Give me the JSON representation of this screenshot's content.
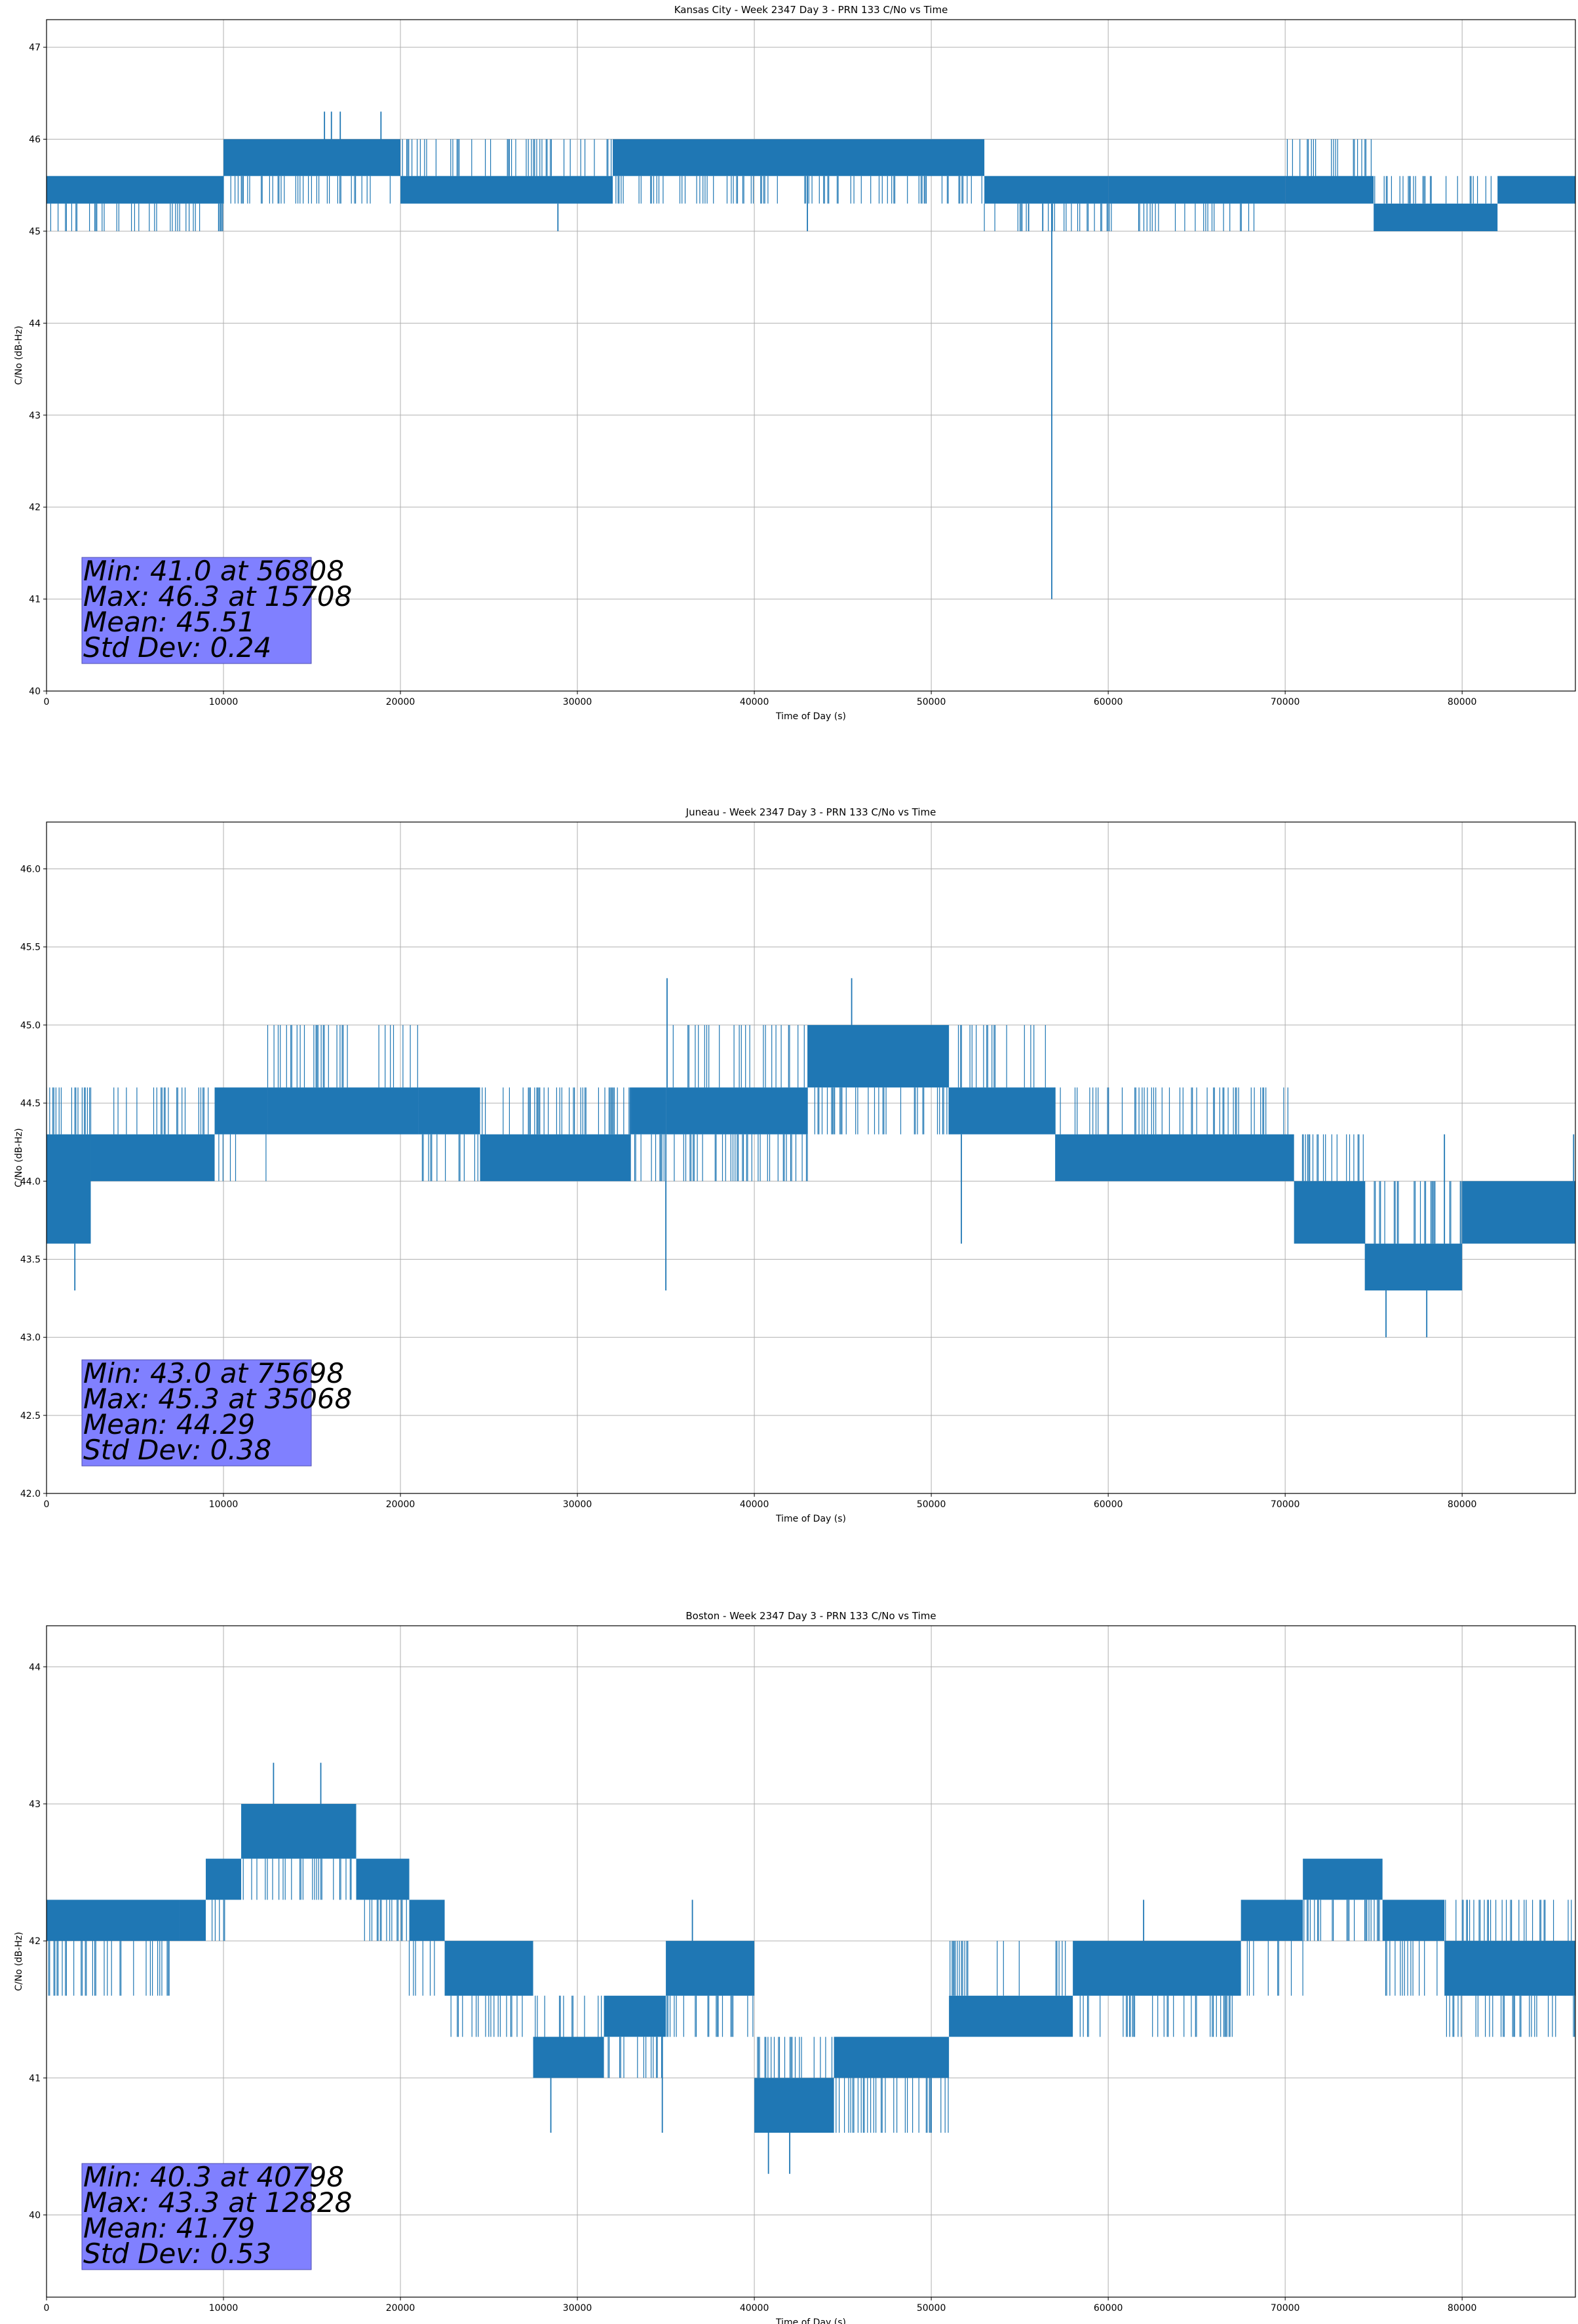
{
  "style": {
    "line_color": "#1f77b4",
    "grid_color": "#b0b0b0",
    "stats_box_color": "#8080ff"
  },
  "chart_data": [
    {
      "type": "line",
      "title": "Kansas City - Week 2347 Day 3 - PRN 133 C/No vs Time",
      "xlabel": "Time of Day (s)",
      "ylabel": "C/No (dB-Hz)",
      "xlim": [
        0,
        86400
      ],
      "ylim": [
        40,
        47.3
      ],
      "grid": true,
      "xticks": [
        0,
        10000,
        20000,
        30000,
        40000,
        50000,
        60000,
        70000,
        80000
      ],
      "yticks": [
        40,
        41,
        42,
        43,
        44,
        45,
        46,
        47
      ],
      "ytick_labels": [
        "40",
        "41",
        "42",
        "43",
        "44",
        "45",
        "46",
        "47"
      ],
      "bands": [
        {
          "x0": 0,
          "x1": 10000,
          "lo": 45.0,
          "hi": 45.6,
          "core_lo": 45.3,
          "core_hi": 45.6
        },
        {
          "x0": 10000,
          "x1": 20000,
          "lo": 45.3,
          "hi": 46.0,
          "core_lo": 45.6,
          "core_hi": 46.0
        },
        {
          "x0": 20000,
          "x1": 32000,
          "lo": 45.3,
          "hi": 46.0,
          "core_lo": 45.3,
          "core_hi": 45.6
        },
        {
          "x0": 32000,
          "x1": 53000,
          "lo": 45.3,
          "hi": 46.0,
          "core_lo": 45.6,
          "core_hi": 46.0
        },
        {
          "x0": 53000,
          "x1": 60000,
          "lo": 45.0,
          "hi": 45.6,
          "core_lo": 45.3,
          "core_hi": 45.6
        },
        {
          "x0": 60000,
          "x1": 70000,
          "lo": 45.0,
          "hi": 45.6,
          "core_lo": 45.3,
          "core_hi": 45.6
        },
        {
          "x0": 70000,
          "x1": 75000,
          "lo": 45.3,
          "hi": 46.0,
          "core_lo": 45.3,
          "core_hi": 45.6
        },
        {
          "x0": 75000,
          "x1": 82000,
          "lo": 45.0,
          "hi": 45.6,
          "core_lo": 45.0,
          "core_hi": 45.3
        },
        {
          "x0": 82000,
          "x1": 86400,
          "lo": 45.3,
          "hi": 45.6,
          "core_lo": 45.3,
          "core_hi": 45.6
        }
      ],
      "spikes": [
        {
          "x": 15708,
          "y": 46.3
        },
        {
          "x": 16100,
          "y": 46.3
        },
        {
          "x": 16600,
          "y": 46.3
        },
        {
          "x": 18900,
          "y": 46.3
        },
        {
          "x": 28900,
          "y": 45.0
        },
        {
          "x": 43000,
          "y": 45.0
        },
        {
          "x": 55500,
          "y": 45.0
        },
        {
          "x": 56300,
          "y": 45.0
        },
        {
          "x": 56808,
          "y": 41.0
        }
      ],
      "stats": [
        "Min: 41.0 at 56808",
        "Max: 46.3 at 15708",
        "Mean: 45.51",
        "Std Dev: 0.24"
      ]
    },
    {
      "type": "line",
      "title": "Juneau - Week 2347 Day 3 - PRN 133 C/No vs Time",
      "xlabel": "Time of Day (s)",
      "ylabel": "C/No (dB-Hz)",
      "xlim": [
        0,
        86400
      ],
      "ylim": [
        42.0,
        46.3
      ],
      "grid": true,
      "xticks": [
        0,
        10000,
        20000,
        30000,
        40000,
        50000,
        60000,
        70000,
        80000
      ],
      "yticks": [
        42.0,
        42.5,
        43.0,
        43.5,
        44.0,
        44.5,
        45.0,
        45.5,
        46.0
      ],
      "ytick_labels": [
        "42.0",
        "42.5",
        "43.0",
        "43.5",
        "44.0",
        "44.5",
        "45.0",
        "45.5",
        "46.0"
      ],
      "bands": [
        {
          "x0": 0,
          "x1": 2500,
          "lo": 43.6,
          "hi": 44.6,
          "core_lo": 43.6,
          "core_hi": 44.3
        },
        {
          "x0": 2500,
          "x1": 9500,
          "lo": 44.0,
          "hi": 44.6,
          "core_lo": 44.0,
          "core_hi": 44.3
        },
        {
          "x0": 9500,
          "x1": 12500,
          "lo": 44.0,
          "hi": 44.6,
          "core_lo": 44.3,
          "core_hi": 44.6
        },
        {
          "x0": 12500,
          "x1": 21000,
          "lo": 44.3,
          "hi": 45.0,
          "core_lo": 44.3,
          "core_hi": 44.6
        },
        {
          "x0": 21000,
          "x1": 24500,
          "lo": 44.0,
          "hi": 44.6,
          "core_lo": 44.3,
          "core_hi": 44.6
        },
        {
          "x0": 24500,
          "x1": 33000,
          "lo": 44.0,
          "hi": 44.6,
          "core_lo": 44.0,
          "core_hi": 44.3
        },
        {
          "x0": 33000,
          "x1": 35000,
          "lo": 44.0,
          "hi": 44.6,
          "core_lo": 44.3,
          "core_hi": 44.6
        },
        {
          "x0": 35000,
          "x1": 43000,
          "lo": 44.0,
          "hi": 45.0,
          "core_lo": 44.3,
          "core_hi": 44.6
        },
        {
          "x0": 43000,
          "x1": 51000,
          "lo": 44.3,
          "hi": 45.0,
          "core_lo": 44.6,
          "core_hi": 45.0
        },
        {
          "x0": 51000,
          "x1": 57000,
          "lo": 44.3,
          "hi": 45.0,
          "core_lo": 44.3,
          "core_hi": 44.6
        },
        {
          "x0": 57000,
          "x1": 70500,
          "lo": 44.0,
          "hi": 44.6,
          "core_lo": 44.0,
          "core_hi": 44.3
        },
        {
          "x0": 70500,
          "x1": 74500,
          "lo": 43.6,
          "hi": 44.3,
          "core_lo": 43.6,
          "core_hi": 44.0
        },
        {
          "x0": 74500,
          "x1": 80000,
          "lo": 43.3,
          "hi": 44.0,
          "core_lo": 43.3,
          "core_hi": 43.6
        },
        {
          "x0": 80000,
          "x1": 86400,
          "lo": 43.6,
          "hi": 44.0,
          "core_lo": 43.6,
          "core_hi": 44.0
        }
      ],
      "spikes": [
        {
          "x": 1600,
          "y": 43.3
        },
        {
          "x": 35068,
          "y": 45.3
        },
        {
          "x": 35000,
          "y": 43.3
        },
        {
          "x": 45500,
          "y": 45.3
        },
        {
          "x": 51700,
          "y": 43.6
        },
        {
          "x": 75698,
          "y": 43.0
        },
        {
          "x": 78000,
          "y": 43.0
        },
        {
          "x": 79000,
          "y": 44.3
        },
        {
          "x": 86300,
          "y": 44.3
        }
      ],
      "stats": [
        "Min: 43.0 at 75698",
        "Max: 45.3 at 35068",
        "Mean: 44.29",
        "Std Dev: 0.38"
      ]
    },
    {
      "type": "line",
      "title": "Boston - Week 2347 Day 3 - PRN 133 C/No vs Time",
      "xlabel": "Time of Day (s)",
      "ylabel": "C/No (dB-Hz)",
      "xlim": [
        0,
        86400
      ],
      "ylim": [
        39.4,
        44.3
      ],
      "grid": true,
      "xticks": [
        0,
        10000,
        20000,
        30000,
        40000,
        50000,
        60000,
        70000,
        80000
      ],
      "yticks": [
        40,
        41,
        42,
        43,
        44
      ],
      "ytick_labels": [
        "40",
        "41",
        "42",
        "43",
        "44"
      ],
      "bands": [
        {
          "x0": 0,
          "x1": 7500,
          "lo": 41.6,
          "hi": 42.3,
          "core_lo": 42.0,
          "core_hi": 42.3
        },
        {
          "x0": 7500,
          "x1": 9000,
          "lo": 42.0,
          "hi": 42.3,
          "core_lo": 42.0,
          "core_hi": 42.3
        },
        {
          "x0": 9000,
          "x1": 11000,
          "lo": 42.0,
          "hi": 42.6,
          "core_lo": 42.3,
          "core_hi": 42.6
        },
        {
          "x0": 11000,
          "x1": 17500,
          "lo": 42.3,
          "hi": 43.0,
          "core_lo": 42.6,
          "core_hi": 43.0
        },
        {
          "x0": 17500,
          "x1": 20500,
          "lo": 42.0,
          "hi": 42.6,
          "core_lo": 42.3,
          "core_hi": 42.6
        },
        {
          "x0": 20500,
          "x1": 22500,
          "lo": 41.6,
          "hi": 42.3,
          "core_lo": 42.0,
          "core_hi": 42.3
        },
        {
          "x0": 22500,
          "x1": 27500,
          "lo": 41.3,
          "hi": 42.0,
          "core_lo": 41.6,
          "core_hi": 42.0
        },
        {
          "x0": 27500,
          "x1": 31500,
          "lo": 41.0,
          "hi": 41.6,
          "core_lo": 41.0,
          "core_hi": 41.3
        },
        {
          "x0": 31500,
          "x1": 35000,
          "lo": 41.0,
          "hi": 41.6,
          "core_lo": 41.3,
          "core_hi": 41.6
        },
        {
          "x0": 35000,
          "x1": 40000,
          "lo": 41.3,
          "hi": 42.0,
          "core_lo": 41.6,
          "core_hi": 42.0
        },
        {
          "x0": 40000,
          "x1": 44500,
          "lo": 40.6,
          "hi": 41.3,
          "core_lo": 40.6,
          "core_hi": 41.0
        },
        {
          "x0": 44500,
          "x1": 51000,
          "lo": 40.6,
          "hi": 41.3,
          "core_lo": 41.0,
          "core_hi": 41.3
        },
        {
          "x0": 51000,
          "x1": 58000,
          "lo": 41.3,
          "hi": 42.0,
          "core_lo": 41.3,
          "core_hi": 41.6
        },
        {
          "x0": 58000,
          "x1": 67500,
          "lo": 41.3,
          "hi": 42.0,
          "core_lo": 41.6,
          "core_hi": 42.0
        },
        {
          "x0": 67500,
          "x1": 71000,
          "lo": 41.6,
          "hi": 42.3,
          "core_lo": 42.0,
          "core_hi": 42.3
        },
        {
          "x0": 71000,
          "x1": 75500,
          "lo": 42.0,
          "hi": 42.6,
          "core_lo": 42.3,
          "core_hi": 42.6
        },
        {
          "x0": 75500,
          "x1": 79000,
          "lo": 41.6,
          "hi": 42.3,
          "core_lo": 42.0,
          "core_hi": 42.3
        },
        {
          "x0": 79000,
          "x1": 86400,
          "lo": 41.3,
          "hi": 42.3,
          "core_lo": 41.6,
          "core_hi": 42.0
        }
      ],
      "spikes": [
        {
          "x": 12828,
          "y": 43.3
        },
        {
          "x": 15500,
          "y": 43.3
        },
        {
          "x": 36500,
          "y": 42.3
        },
        {
          "x": 40798,
          "y": 40.3
        },
        {
          "x": 42000,
          "y": 40.3
        },
        {
          "x": 28500,
          "y": 40.6
        },
        {
          "x": 62000,
          "y": 42.3
        },
        {
          "x": 34800,
          "y": 40.6
        }
      ],
      "stats": [
        "Min: 40.3 at 40798",
        "Max: 43.3 at 12828",
        "Mean: 41.79",
        "Std Dev: 0.53"
      ]
    }
  ]
}
